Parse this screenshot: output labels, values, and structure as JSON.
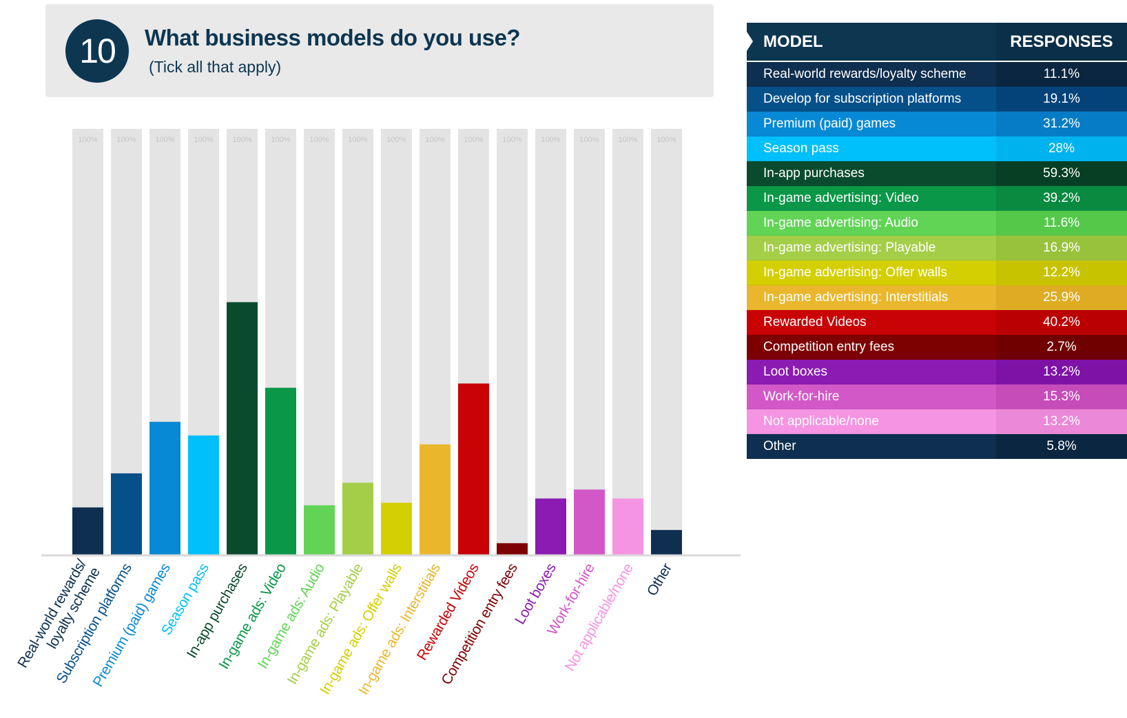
{
  "header": {
    "number": "10",
    "title": "What business models do you use?",
    "subtitle": "(Tick all that apply)"
  },
  "table": {
    "col_model": "MODEL",
    "col_responses": "RESPONSES",
    "rows": [
      {
        "model": "Real-world rewards/loyalty scheme",
        "value": "11.1%",
        "color": "#0e2f4f",
        "val_color": "#0a2640"
      },
      {
        "model": "Develop for subscription platforms",
        "value": "19.1%",
        "color": "#06508a",
        "val_color": "#04437a"
      },
      {
        "model": "Premium (paid) games",
        "value": "31.2%",
        "color": "#0889d6",
        "val_color": "#067cc6"
      },
      {
        "model": "Season pass",
        "value": "28%",
        "color": "#00c0fb",
        "val_color": "#00b3ee"
      },
      {
        "model": "In-app purchases",
        "value": "59.3%",
        "color": "#0a4b2d",
        "val_color": "#073f25"
      },
      {
        "model": "In-game advertising: Video",
        "value": "39.2%",
        "color": "#0a9748",
        "val_color": "#088a40"
      },
      {
        "model": "In-game advertising: Audio",
        "value": "11.6%",
        "color": "#61d456",
        "val_color": "#55c84a"
      },
      {
        "model": "In-game advertising: Playable",
        "value": "16.9%",
        "color": "#a5ce48",
        "val_color": "#99c23c"
      },
      {
        "model": "In-game advertising: Offer walls",
        "value": "12.2%",
        "color": "#d4cf02",
        "val_color": "#c8c300"
      },
      {
        "model": "In-game advertising: Interstitials",
        "value": "25.9%",
        "color": "#eab72c",
        "val_color": "#deab22"
      },
      {
        "model": "Rewarded Videos",
        "value": "40.2%",
        "color": "#c90205",
        "val_color": "#bb0003"
      },
      {
        "model": "Competition entry fees",
        "value": "2.7%",
        "color": "#7e0101",
        "val_color": "#700000"
      },
      {
        "model": "Loot boxes",
        "value": "13.2%",
        "color": "#8b1bb3",
        "val_color": "#7e12a6"
      },
      {
        "model": "Work-for-hire",
        "value": "15.3%",
        "color": "#d258c7",
        "val_color": "#c64cba"
      },
      {
        "model": "Not applicable/none",
        "value": "13.2%",
        "color": "#f594e2",
        "val_color": "#eb88d7"
      },
      {
        "model": "Other",
        "value": "5.8%",
        "color": "#0e2f4f",
        "val_color": "#0a2640"
      }
    ]
  },
  "chart_data": {
    "type": "bar",
    "bg_label": "100%",
    "ylim": [
      0,
      100
    ],
    "categories": [
      "Real-world rewards/ loyalty scheme",
      "Subscription platforms",
      "Premium (paid) games",
      "Season pass",
      "In-app purchases",
      "In-game ads: Video",
      "In-game ads: Audio",
      "In-game ads: Playable",
      "In-game ads: Offer walls",
      "In-game ads: Interstitials",
      "Rewarded Videos",
      "Competition entry fees",
      "Loot boxes",
      "Work-for-hire",
      "Not applicable/none",
      "Other"
    ],
    "values": [
      11.1,
      19.1,
      31.2,
      28,
      59.3,
      39.2,
      11.6,
      16.9,
      12.2,
      25.9,
      40.2,
      2.7,
      13.2,
      15.3,
      13.2,
      5.8
    ],
    "colors": [
      "#0e2f4f",
      "#06508a",
      "#0889d6",
      "#00c0fb",
      "#0a4b2d",
      "#0a9748",
      "#61d456",
      "#a5ce48",
      "#d4cf02",
      "#eab72c",
      "#c90205",
      "#7e0101",
      "#8b1bb3",
      "#d258c7",
      "#f594e2",
      "#0e2f4f"
    ]
  }
}
